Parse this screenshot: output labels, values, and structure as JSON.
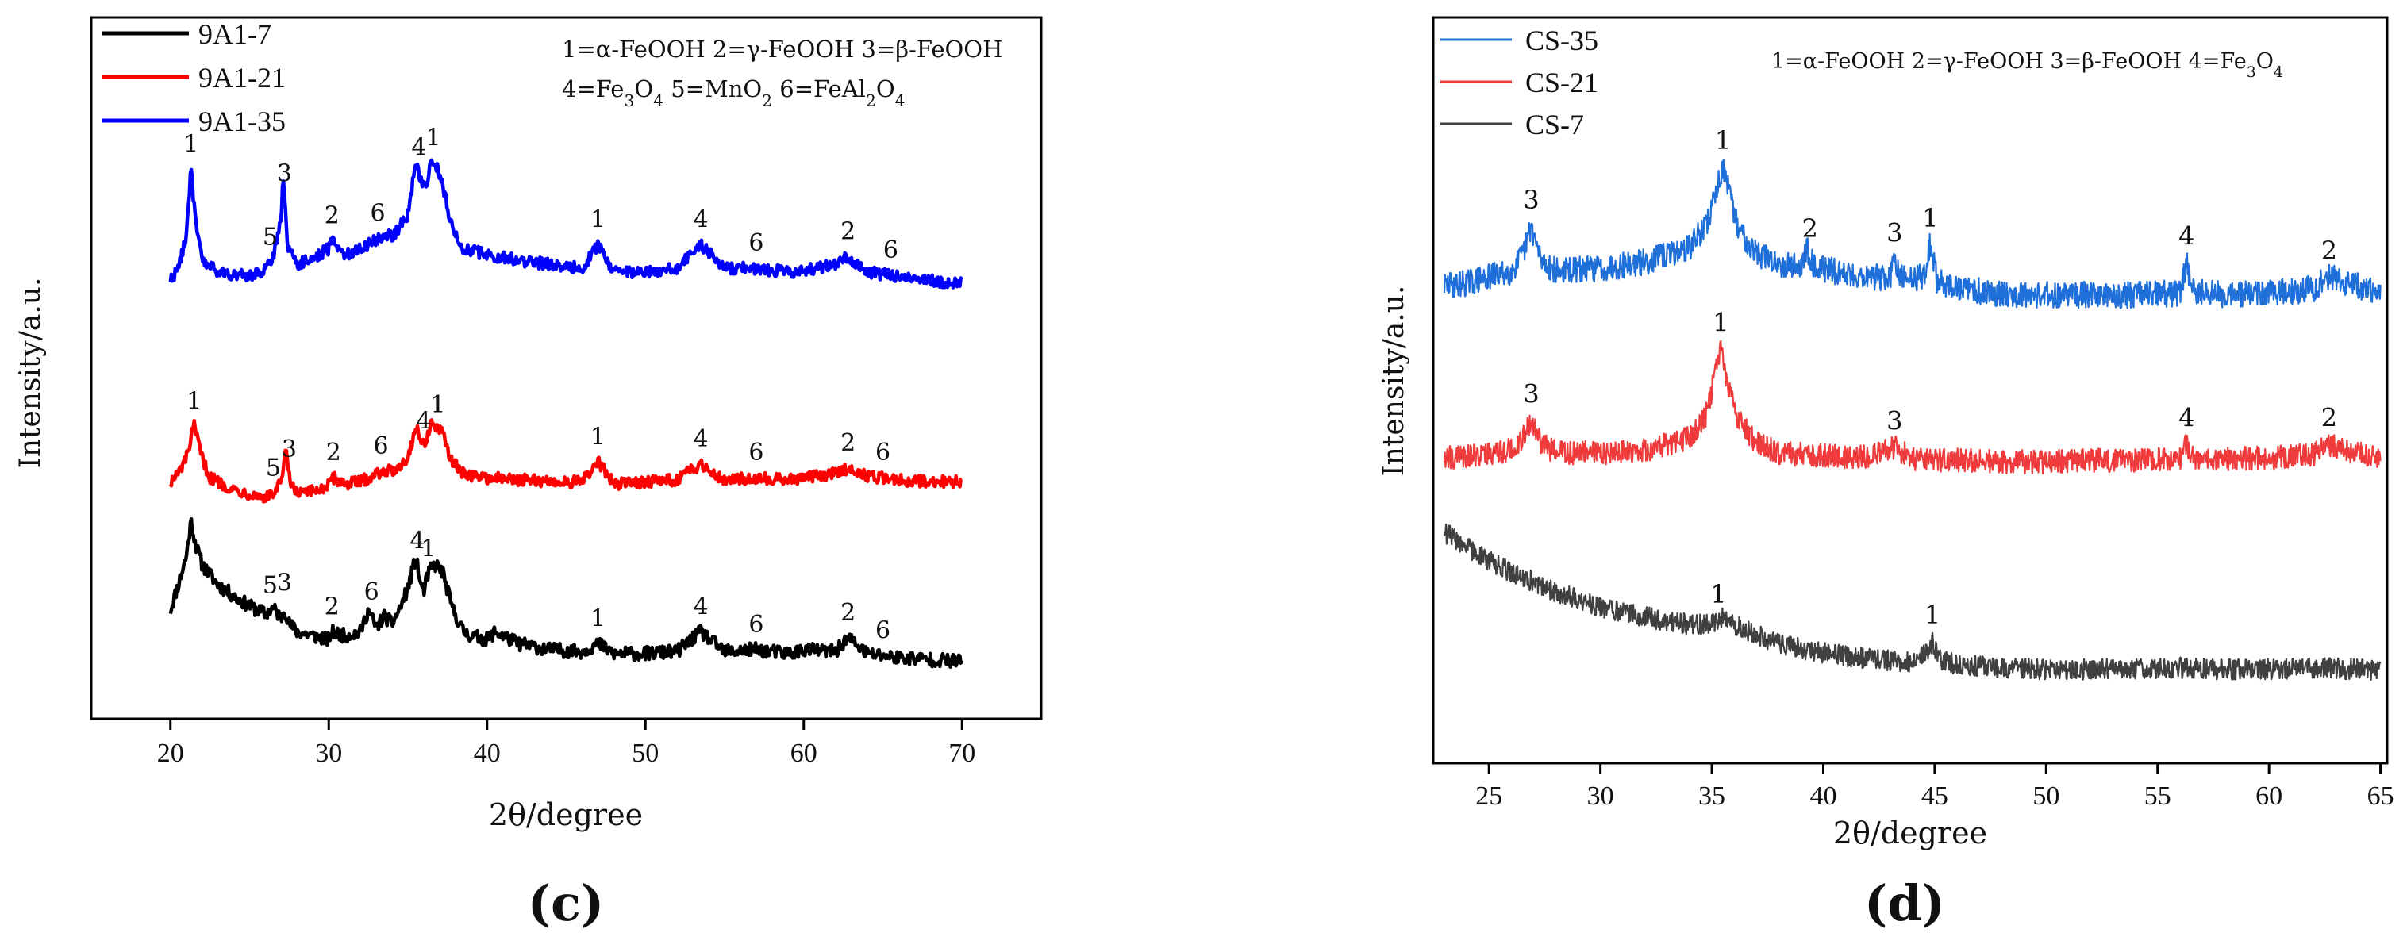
{
  "panels": [
    {
      "label": "(c)",
      "letter": "c"
    },
    {
      "label": "(d)",
      "letter": "d"
    }
  ],
  "chart_data": [
    {
      "type": "line",
      "panel": "c",
      "title": "",
      "xlabel": "2θ/degree",
      "ylabel": "Intensity/a.u.",
      "xlim": [
        15,
        75
      ],
      "ylim": [
        0,
        3.55
      ],
      "xticks": [
        20,
        30,
        40,
        50,
        60,
        70
      ],
      "legend_position": "top-left",
      "annotation_lines": [
        "1=α-FeOOH 2=γ-FeOOH 3=β-FeOOH",
        "4=Fe3O4 5=MnO2 6=FeAl2O4"
      ],
      "series": [
        {
          "name": "9A1-7",
          "color": "#000000",
          "noise": 0.035,
          "x": [
            20.0,
            20.5,
            21.0,
            21.3,
            21.6,
            22.0,
            23.0,
            24.0,
            25.0,
            26.0,
            26.5,
            27.0,
            27.2,
            27.5,
            28.0,
            29.0,
            30.0,
            30.2,
            31.0,
            32.0,
            32.5,
            33.0,
            33.5,
            34.0,
            34.5,
            35.0,
            35.5,
            35.8,
            36.0,
            36.4,
            36.8,
            37.2,
            37.8,
            38.5,
            39.0,
            40.0,
            40.5,
            42.0,
            44.0,
            46.0,
            47.0,
            48.0,
            50.0,
            52.0,
            53.5,
            55.0,
            57.0,
            59.0,
            60.0,
            62.0,
            62.8,
            64.0,
            66.0,
            68.0,
            70.0
          ],
          "y": [
            0.55,
            0.68,
            0.82,
            1.0,
            0.88,
            0.78,
            0.68,
            0.62,
            0.57,
            0.53,
            0.56,
            0.51,
            0.56,
            0.48,
            0.44,
            0.42,
            0.4,
            0.44,
            0.42,
            0.44,
            0.55,
            0.46,
            0.52,
            0.48,
            0.56,
            0.66,
            0.82,
            0.68,
            0.65,
            0.76,
            0.78,
            0.74,
            0.56,
            0.44,
            0.42,
            0.4,
            0.44,
            0.38,
            0.35,
            0.34,
            0.38,
            0.33,
            0.33,
            0.34,
            0.44,
            0.34,
            0.35,
            0.33,
            0.35,
            0.34,
            0.41,
            0.33,
            0.31,
            0.3,
            0.29
          ]
        },
        {
          "name": "9A1-21",
          "color": "#ff0000",
          "noise": 0.03,
          "x": [
            20.0,
            20.5,
            21.0,
            21.5,
            22.0,
            22.5,
            24.0,
            25.5,
            26.2,
            26.6,
            27.0,
            27.3,
            27.6,
            28.0,
            29.0,
            30.0,
            30.3,
            31.0,
            32.0,
            33.5,
            34.0,
            35.0,
            35.5,
            36.0,
            36.2,
            36.5,
            36.8,
            37.2,
            37.8,
            38.5,
            40.0,
            42.0,
            44.0,
            46.0,
            47.0,
            48.0,
            50.0,
            52.0,
            53.5,
            55.0,
            57.0,
            59.0,
            60.0,
            62.0,
            62.8,
            64.0,
            66.0,
            68.0,
            70.0
          ],
          "y": [
            1.2,
            1.24,
            1.32,
            1.48,
            1.32,
            1.22,
            1.16,
            1.13,
            1.12,
            1.15,
            1.2,
            1.35,
            1.18,
            1.14,
            1.15,
            1.18,
            1.22,
            1.19,
            1.2,
            1.26,
            1.25,
            1.32,
            1.48,
            1.38,
            1.43,
            1.5,
            1.47,
            1.44,
            1.3,
            1.24,
            1.22,
            1.21,
            1.2,
            1.2,
            1.3,
            1.19,
            1.2,
            1.21,
            1.29,
            1.21,
            1.22,
            1.21,
            1.22,
            1.24,
            1.27,
            1.23,
            1.21,
            1.2,
            1.2
          ]
        },
        {
          "name": "9A1-35",
          "color": "#0000ff",
          "noise": 0.03,
          "x": [
            20.0,
            20.5,
            21.0,
            21.3,
            21.6,
            22.0,
            23.0,
            24.0,
            25.0,
            26.0,
            26.5,
            27.0,
            27.1,
            27.4,
            28.0,
            29.0,
            30.0,
            30.2,
            31.0,
            32.0,
            33.5,
            34.0,
            35.0,
            35.5,
            36.0,
            36.2,
            36.5,
            36.8,
            37.2,
            37.8,
            38.5,
            40.0,
            42.0,
            44.0,
            46.0,
            47.0,
            48.0,
            50.0,
            52.0,
            53.5,
            55.0,
            57.0,
            59.0,
            60.0,
            62.0,
            62.8,
            64.0,
            66.0,
            68.0,
            70.0
          ],
          "y": [
            2.22,
            2.28,
            2.45,
            2.78,
            2.5,
            2.32,
            2.26,
            2.25,
            2.24,
            2.27,
            2.34,
            2.55,
            2.75,
            2.4,
            2.3,
            2.33,
            2.38,
            2.42,
            2.35,
            2.38,
            2.45,
            2.44,
            2.55,
            2.82,
            2.68,
            2.72,
            2.82,
            2.8,
            2.7,
            2.48,
            2.38,
            2.35,
            2.32,
            2.3,
            2.28,
            2.4,
            2.26,
            2.26,
            2.28,
            2.4,
            2.28,
            2.28,
            2.26,
            2.27,
            2.3,
            2.34,
            2.26,
            2.24,
            2.22,
            2.2
          ]
        }
      ],
      "legend": [
        {
          "name": "9A1-7",
          "color": "#000000"
        },
        {
          "name": "9A1-21",
          "color": "#ff0000"
        },
        {
          "name": "9A1-35",
          "color": "#0000ff"
        }
      ],
      "peak_labels": [
        {
          "series": "9A1-35",
          "x": 21.3,
          "label": "1"
        },
        {
          "series": "9A1-35",
          "x": 26.3,
          "label": "5"
        },
        {
          "series": "9A1-35",
          "x": 27.2,
          "label": "3"
        },
        {
          "series": "9A1-35",
          "x": 30.2,
          "label": "2"
        },
        {
          "series": "9A1-35",
          "x": 33.1,
          "label": "6"
        },
        {
          "series": "9A1-35",
          "x": 35.7,
          "label": "4"
        },
        {
          "series": "9A1-35",
          "x": 36.6,
          "label": "1"
        },
        {
          "series": "9A1-35",
          "x": 47.0,
          "label": "1"
        },
        {
          "series": "9A1-35",
          "x": 53.5,
          "label": "4"
        },
        {
          "series": "9A1-35",
          "x": 57.0,
          "label": "6"
        },
        {
          "series": "9A1-35",
          "x": 62.8,
          "label": "2"
        },
        {
          "series": "9A1-35",
          "x": 65.5,
          "label": "6"
        },
        {
          "series": "9A1-21",
          "x": 21.5,
          "label": "1"
        },
        {
          "series": "9A1-21",
          "x": 26.5,
          "label": "5"
        },
        {
          "series": "9A1-21",
          "x": 27.5,
          "label": "3"
        },
        {
          "series": "9A1-21",
          "x": 30.3,
          "label": "2"
        },
        {
          "series": "9A1-21",
          "x": 33.3,
          "label": "6"
        },
        {
          "series": "9A1-21",
          "x": 36.0,
          "label": "4"
        },
        {
          "series": "9A1-21",
          "x": 36.9,
          "label": "1"
        },
        {
          "series": "9A1-21",
          "x": 47.0,
          "label": "1"
        },
        {
          "series": "9A1-21",
          "x": 53.5,
          "label": "4"
        },
        {
          "series": "9A1-21",
          "x": 57.0,
          "label": "6"
        },
        {
          "series": "9A1-21",
          "x": 62.8,
          "label": "2"
        },
        {
          "series": "9A1-21",
          "x": 65.0,
          "label": "6"
        },
        {
          "series": "9A1-7",
          "x": 26.3,
          "label": "5"
        },
        {
          "series": "9A1-7",
          "x": 27.2,
          "label": "3"
        },
        {
          "series": "9A1-7",
          "x": 30.2,
          "label": "2"
        },
        {
          "series": "9A1-7",
          "x": 32.7,
          "label": "6"
        },
        {
          "series": "9A1-7",
          "x": 35.6,
          "label": "4"
        },
        {
          "series": "9A1-7",
          "x": 36.3,
          "label": "1"
        },
        {
          "series": "9A1-7",
          "x": 47.0,
          "label": "1"
        },
        {
          "series": "9A1-7",
          "x": 53.5,
          "label": "4"
        },
        {
          "series": "9A1-7",
          "x": 57.0,
          "label": "6"
        },
        {
          "series": "9A1-7",
          "x": 62.8,
          "label": "2"
        },
        {
          "series": "9A1-7",
          "x": 65.0,
          "label": "6"
        }
      ]
    },
    {
      "type": "line",
      "panel": "d",
      "title": "",
      "xlabel": "2θ/degree",
      "ylabel": "Intensity/a.u.",
      "xlim": [
        22.5,
        65.3
      ],
      "ylim": [
        0,
        5.0
      ],
      "xticks": [
        25,
        30,
        35,
        40,
        45,
        50,
        55,
        60,
        65
      ],
      "legend_position": "top-left",
      "annotation_lines": [
        "1=α-FeOOH 2=γ-FeOOH 3=β-FeOOH 4=Fe3O4"
      ],
      "series": [
        {
          "name": "CS-35",
          "color": "#1e6fd9",
          "noise": 0.09,
          "x": [
            23.0,
            24.0,
            25.0,
            26.0,
            26.5,
            26.9,
            27.3,
            28.0,
            30.0,
            32.0,
            34.0,
            34.8,
            35.3,
            35.5,
            35.8,
            36.2,
            37.0,
            38.0,
            39.0,
            39.3,
            39.6,
            41.0,
            43.0,
            43.2,
            43.4,
            44.5,
            44.8,
            45.1,
            46.0,
            48.0,
            50.0,
            52.0,
            54.0,
            56.0,
            56.3,
            56.6,
            58.0,
            60.0,
            62.0,
            62.7,
            63.5,
            64.5,
            65.0
          ],
          "y": [
            3.2,
            3.22,
            3.26,
            3.3,
            3.4,
            3.6,
            3.38,
            3.3,
            3.32,
            3.36,
            3.46,
            3.62,
            3.9,
            4.0,
            3.8,
            3.58,
            3.42,
            3.35,
            3.33,
            3.45,
            3.33,
            3.28,
            3.25,
            3.38,
            3.25,
            3.26,
            3.48,
            3.24,
            3.18,
            3.15,
            3.14,
            3.14,
            3.14,
            3.15,
            3.36,
            3.16,
            3.14,
            3.15,
            3.18,
            3.26,
            3.22,
            3.17,
            3.12
          ]
        },
        {
          "name": "CS-21",
          "color": "#ef3b3b",
          "noise": 0.08,
          "x": [
            23.0,
            24.0,
            25.0,
            26.0,
            26.5,
            26.9,
            27.3,
            28.0,
            30.0,
            32.0,
            34.0,
            34.8,
            35.2,
            35.4,
            35.7,
            36.2,
            37.0,
            38.0,
            40.0,
            42.0,
            43.2,
            44.0,
            46.0,
            48.0,
            50.0,
            52.0,
            54.0,
            56.0,
            56.3,
            56.6,
            58.0,
            60.0,
            62.0,
            62.7,
            63.5,
            65.0
          ],
          "y": [
            2.05,
            2.06,
            2.08,
            2.1,
            2.18,
            2.3,
            2.15,
            2.08,
            2.08,
            2.1,
            2.18,
            2.35,
            2.65,
            2.78,
            2.55,
            2.3,
            2.15,
            2.08,
            2.06,
            2.05,
            2.12,
            2.04,
            2.03,
            2.02,
            2.02,
            2.03,
            2.03,
            2.04,
            2.14,
            2.05,
            2.04,
            2.05,
            2.07,
            2.14,
            2.1,
            2.04
          ]
        },
        {
          "name": "CS-7",
          "color": "#404040",
          "noise": 0.07,
          "x": [
            23.0,
            24.0,
            25.0,
            26.0,
            28.0,
            30.0,
            32.0,
            34.0,
            35.0,
            35.5,
            36.0,
            37.0,
            38.0,
            40.0,
            42.0,
            44.0,
            44.7,
            44.9,
            45.2,
            46.0,
            48.0,
            50.0,
            52.0,
            54.0,
            56.0,
            58.0,
            60.0,
            62.0,
            64.0,
            65.0
          ],
          "y": [
            1.55,
            1.45,
            1.36,
            1.28,
            1.15,
            1.05,
            0.98,
            0.93,
            0.94,
            0.97,
            0.93,
            0.86,
            0.8,
            0.74,
            0.7,
            0.68,
            0.74,
            0.82,
            0.7,
            0.66,
            0.64,
            0.63,
            0.63,
            0.63,
            0.64,
            0.63,
            0.63,
            0.64,
            0.63,
            0.62
          ]
        }
      ],
      "legend": [
        {
          "name": "CS-35",
          "color": "#1e6fd9"
        },
        {
          "name": "CS-21",
          "color": "#ef3b3b"
        },
        {
          "name": "CS-7",
          "color": "#404040"
        }
      ],
      "peak_labels": [
        {
          "series": "CS-35",
          "x": 26.9,
          "label": "3"
        },
        {
          "series": "CS-35",
          "x": 35.5,
          "label": "1"
        },
        {
          "series": "CS-35",
          "x": 39.4,
          "label": "2"
        },
        {
          "series": "CS-35",
          "x": 43.2,
          "label": "3"
        },
        {
          "series": "CS-35",
          "x": 44.8,
          "label": "1"
        },
        {
          "series": "CS-35",
          "x": 56.3,
          "label": "4"
        },
        {
          "series": "CS-35",
          "x": 62.7,
          "label": "2"
        },
        {
          "series": "CS-21",
          "x": 26.9,
          "label": "3"
        },
        {
          "series": "CS-21",
          "x": 35.4,
          "label": "1"
        },
        {
          "series": "CS-21",
          "x": 43.2,
          "label": "3"
        },
        {
          "series": "CS-21",
          "x": 56.3,
          "label": "4"
        },
        {
          "series": "CS-21",
          "x": 62.7,
          "label": "2"
        },
        {
          "series": "CS-7",
          "x": 35.3,
          "label": "1"
        },
        {
          "series": "CS-7",
          "x": 44.9,
          "label": "1"
        }
      ]
    }
  ]
}
